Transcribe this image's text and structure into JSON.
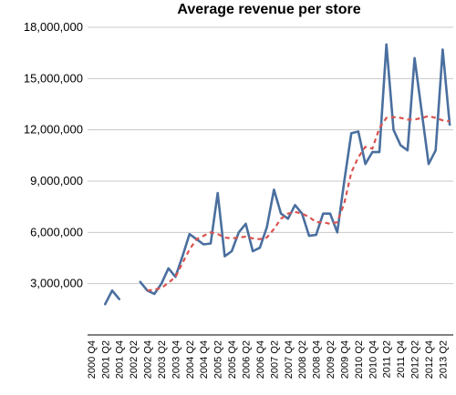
{
  "chart_data": {
    "type": "line",
    "title": "Average revenue per store",
    "xlabel": "",
    "ylabel": "",
    "ylim": [
      0,
      18000000
    ],
    "yticks": [
      3000000,
      6000000,
      9000000,
      12000000,
      15000000,
      18000000
    ],
    "ytick_labels": [
      "3,000,000",
      "6,000,000",
      "9,000,000",
      "12,000,000",
      "15,000,000",
      "18,000,000"
    ],
    "grid": true,
    "legend": "none",
    "x": [
      "2000 Q4",
      "2001 Q1",
      "2001 Q2",
      "2001 Q3",
      "2001 Q4",
      "2002 Q1",
      "2002 Q2",
      "2002 Q3",
      "2002 Q4",
      "2003 Q1",
      "2003 Q2",
      "2003 Q3",
      "2003 Q4",
      "2004 Q1",
      "2004 Q2",
      "2004 Q3",
      "2004 Q4",
      "2005 Q1",
      "2005 Q2",
      "2005 Q3",
      "2005 Q4",
      "2006 Q1",
      "2006 Q2",
      "2006 Q3",
      "2006 Q4",
      "2007 Q1",
      "2007 Q2",
      "2007 Q3",
      "2007 Q4",
      "2008 Q1",
      "2008 Q2",
      "2008 Q3",
      "2008 Q4",
      "2009 Q1",
      "2009 Q2",
      "2009 Q3",
      "2009 Q4",
      "2010 Q1",
      "2010 Q2",
      "2010 Q3",
      "2010 Q4",
      "2011 Q1",
      "2011 Q2",
      "2011 Q3",
      "2011 Q4",
      "2012 Q1",
      "2012 Q2",
      "2012 Q3",
      "2012 Q4",
      "2013 Q1",
      "2013 Q2",
      "2013 Q3"
    ],
    "x_tick_labels": [
      "2000 Q4",
      "2001 Q2",
      "2001 Q4",
      "2002 Q2",
      "2002 Q4",
      "2003 Q2",
      "2003 Q4",
      "2004 Q2",
      "2004 Q4",
      "2005 Q2",
      "2005 Q4",
      "2006 Q2",
      "2006 Q4",
      "2007 Q2",
      "2007 Q4",
      "2008 Q2",
      "2008 Q4",
      "2009 Q2",
      "2009 Q4",
      "2010 Q2",
      "2010 Q4",
      "2011 Q2",
      "2011 Q4",
      "2012 Q2",
      "2012 Q4",
      "2013 Q2"
    ],
    "series": [
      {
        "style": "solid",
        "color": "#4a6f9f",
        "values": [
          null,
          null,
          1800000,
          2600000,
          2100000,
          null,
          null,
          3100000,
          2600000,
          2400000,
          3000000,
          3900000,
          3400000,
          4600000,
          5900000,
          5600000,
          5300000,
          5350000,
          8300000,
          4600000,
          4900000,
          6000000,
          6500000,
          4900000,
          5100000,
          6300000,
          8500000,
          7100000,
          6800000,
          7600000,
          7100000,
          5800000,
          5850000,
          7100000,
          7100000,
          6000000,
          9000000,
          11800000,
          11900000,
          10000000,
          10700000,
          10700000,
          17000000,
          12000000,
          11100000,
          10800000,
          16200000,
          13100000,
          10000000,
          10800000,
          16700000,
          12300000
        ]
      },
      {
        "style": "dashed",
        "color": "#d9534f",
        "values": [
          null,
          null,
          null,
          null,
          null,
          null,
          null,
          null,
          2600000,
          2650000,
          2750000,
          3050000,
          3400000,
          4200000,
          5000000,
          5600000,
          5800000,
          6000000,
          5900000,
          5700000,
          5650000,
          5700000,
          5750000,
          5650000,
          5600000,
          5700000,
          6200000,
          6800000,
          7100000,
          7200000,
          7100000,
          6900000,
          6600000,
          6600000,
          6500000,
          6600000,
          7700000,
          9500000,
          10400000,
          11000000,
          10900000,
          12100000,
          12700000,
          12750000,
          12700000,
          12600000,
          12600000,
          12700000,
          12800000,
          12700000,
          12550000,
          12500000
        ]
      }
    ]
  }
}
